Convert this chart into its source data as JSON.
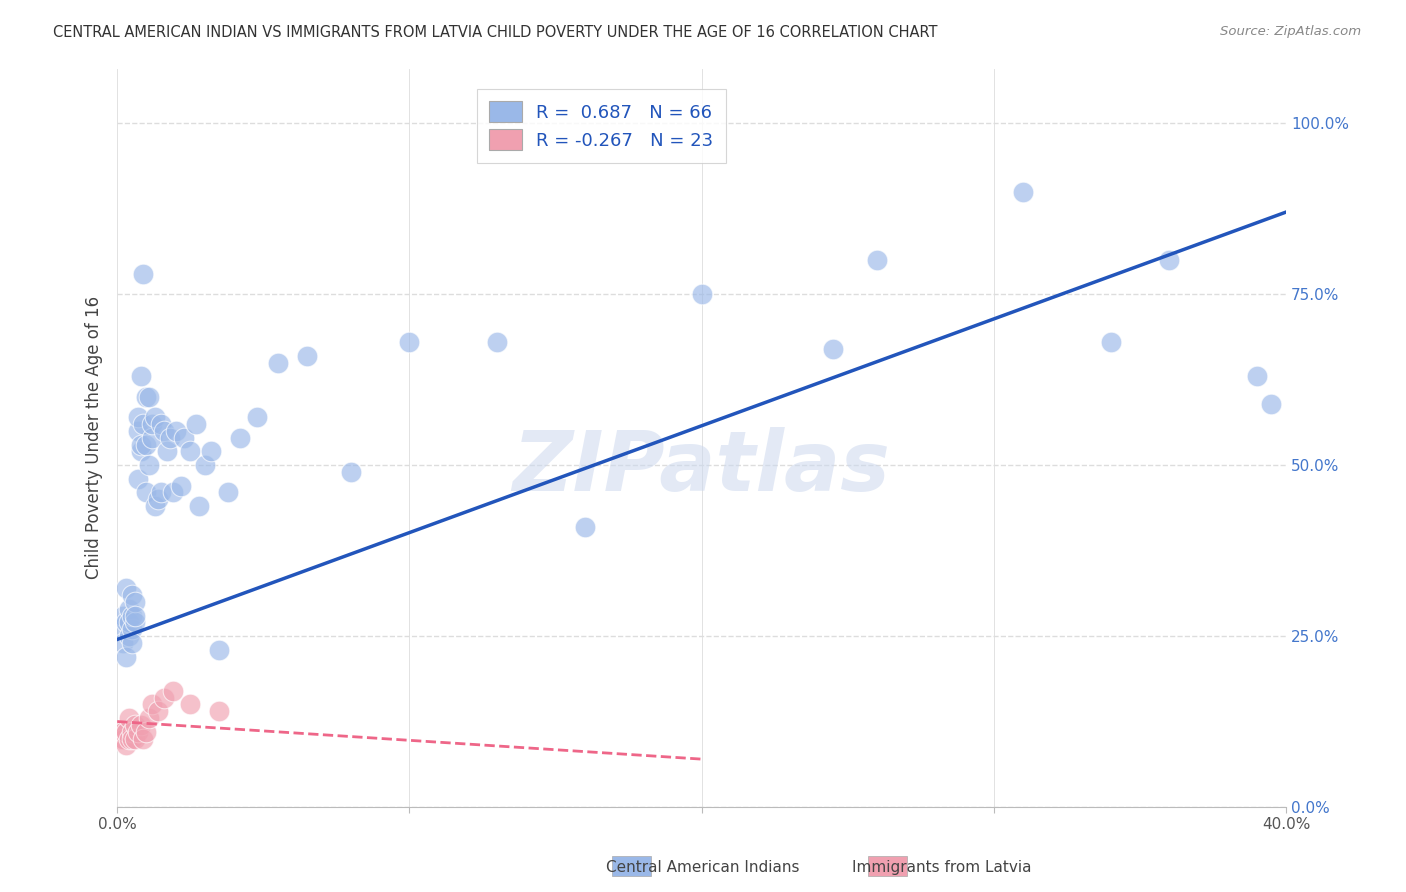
{
  "title": "CENTRAL AMERICAN INDIAN VS IMMIGRANTS FROM LATVIA CHILD POVERTY UNDER THE AGE OF 16 CORRELATION CHART",
  "source": "Source: ZipAtlas.com",
  "ylabel": "Child Poverty Under the Age of 16",
  "xlim": [
    0.0,
    0.4
  ],
  "ylim": [
    0.0,
    1.08
  ],
  "xticks": [
    0.0,
    0.1,
    0.2,
    0.3,
    0.4
  ],
  "xticklabels": [
    "0.0%",
    "",
    "",
    "",
    "40.0%"
  ],
  "yticks_right": [
    0.0,
    0.25,
    0.5,
    0.75,
    1.0
  ],
  "yticklabels_right": [
    "0.0%",
    "25.0%",
    "50.0%",
    "75.0%",
    "100.0%"
  ],
  "grid_color": "#dddddd",
  "background_color": "#ffffff",
  "watermark": "ZIPatlas",
  "blue_color": "#9ab8e8",
  "pink_color": "#f0a0b0",
  "blue_line_color": "#2255bb",
  "pink_line_color": "#ee6688",
  "blue_r": 0.687,
  "blue_n": 66,
  "pink_r": -0.267,
  "pink_n": 23,
  "blue_scatter_x": [
    0.001,
    0.002,
    0.002,
    0.003,
    0.003,
    0.003,
    0.004,
    0.004,
    0.004,
    0.005,
    0.005,
    0.005,
    0.005,
    0.006,
    0.006,
    0.006,
    0.007,
    0.007,
    0.007,
    0.008,
    0.008,
    0.008,
    0.009,
    0.009,
    0.01,
    0.01,
    0.01,
    0.011,
    0.011,
    0.012,
    0.012,
    0.013,
    0.013,
    0.014,
    0.015,
    0.015,
    0.016,
    0.017,
    0.018,
    0.019,
    0.02,
    0.022,
    0.023,
    0.025,
    0.027,
    0.028,
    0.03,
    0.032,
    0.035,
    0.038,
    0.042,
    0.048,
    0.055,
    0.065,
    0.08,
    0.1,
    0.13,
    0.16,
    0.2,
    0.245,
    0.26,
    0.31,
    0.34,
    0.36,
    0.39,
    0.395
  ],
  "blue_scatter_y": [
    0.26,
    0.28,
    0.24,
    0.27,
    0.22,
    0.32,
    0.25,
    0.29,
    0.27,
    0.26,
    0.31,
    0.28,
    0.24,
    0.27,
    0.3,
    0.28,
    0.55,
    0.48,
    0.57,
    0.52,
    0.53,
    0.63,
    0.56,
    0.78,
    0.53,
    0.46,
    0.6,
    0.5,
    0.6,
    0.54,
    0.56,
    0.44,
    0.57,
    0.45,
    0.56,
    0.46,
    0.55,
    0.52,
    0.54,
    0.46,
    0.55,
    0.47,
    0.54,
    0.52,
    0.56,
    0.44,
    0.5,
    0.52,
    0.23,
    0.46,
    0.54,
    0.57,
    0.65,
    0.66,
    0.49,
    0.68,
    0.68,
    0.41,
    0.75,
    0.67,
    0.8,
    0.9,
    0.68,
    0.8,
    0.63,
    0.59
  ],
  "pink_scatter_x": [
    0.001,
    0.001,
    0.002,
    0.002,
    0.003,
    0.003,
    0.004,
    0.004,
    0.005,
    0.005,
    0.006,
    0.006,
    0.007,
    0.008,
    0.009,
    0.01,
    0.011,
    0.012,
    0.014,
    0.016,
    0.019,
    0.025,
    0.035
  ],
  "pink_scatter_y": [
    0.1,
    0.11,
    0.1,
    0.11,
    0.09,
    0.11,
    0.1,
    0.13,
    0.11,
    0.1,
    0.12,
    0.1,
    0.11,
    0.12,
    0.1,
    0.11,
    0.13,
    0.15,
    0.14,
    0.16,
    0.17,
    0.15,
    0.14
  ],
  "blue_trend_x": [
    0.0,
    0.4
  ],
  "blue_trend_y": [
    0.245,
    0.87
  ],
  "pink_trend_x": [
    0.0,
    0.2
  ],
  "pink_trend_y": [
    0.125,
    0.07
  ]
}
